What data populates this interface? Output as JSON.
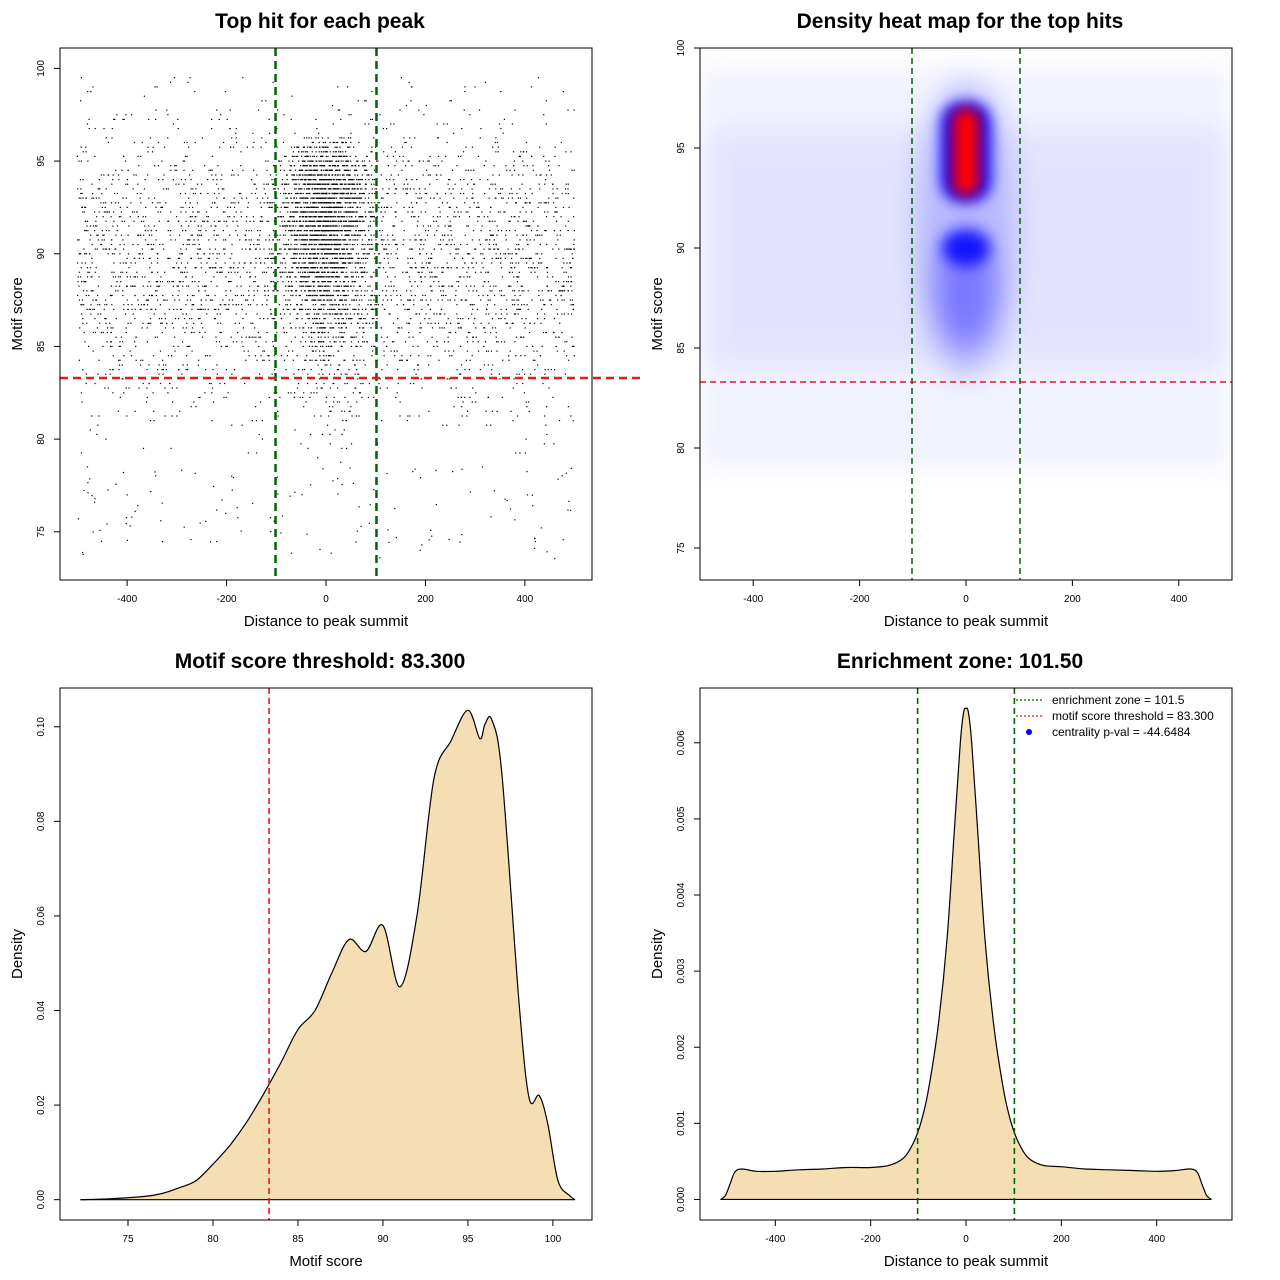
{
  "chart_data": [
    {
      "id": "scatter",
      "type": "scatter",
      "title": "Top hit for each peak",
      "xlabel": "Distance to peak summit",
      "ylabel": "Motif score",
      "xlim": [
        -535,
        535
      ],
      "ylim": [
        72.4,
        101.1
      ],
      "xticks": [
        -400,
        -200,
        0,
        200,
        400
      ],
      "yticks": [
        75,
        80,
        85,
        90,
        95,
        100
      ],
      "vlines": [
        {
          "x": -101.5,
          "color": "#006400",
          "style": "dashed"
        },
        {
          "x": 101.5,
          "color": "#006400",
          "style": "dashed"
        }
      ],
      "hlines": [
        {
          "y": 83.3,
          "color": "#e41a1c",
          "style": "dashed"
        }
      ],
      "point_color": "#000000",
      "x_range_points": [
        -500,
        500
      ],
      "grid": false
    },
    {
      "id": "heatmap",
      "type": "heatmap",
      "title": "Density heat map for the top hits",
      "xlabel": "Distance to peak summit",
      "ylabel": "Motif score",
      "xlim": [
        -500,
        500
      ],
      "ylim": [
        73.4,
        100
      ],
      "xticks": [
        -400,
        -200,
        0,
        200,
        400
      ],
      "yticks": [
        75,
        80,
        85,
        90,
        95,
        100
      ],
      "vlines": [
        {
          "x": -101.5,
          "color": "#006400",
          "style": "dashed"
        },
        {
          "x": 101.5,
          "color": "#006400",
          "style": "dashed"
        }
      ],
      "hlines": [
        {
          "y": 83.3,
          "color": "#e41a1c",
          "style": "dashed"
        }
      ],
      "colors": [
        "#ffffff",
        "#0000ff",
        "#ff0000"
      ],
      "grid": false
    },
    {
      "id": "score_density",
      "type": "area",
      "title": "Motif score threshold: 83.300",
      "xlabel": "Motif score",
      "ylabel": "Density",
      "xlim": [
        71,
        102.3
      ],
      "ylim": [
        -0.0043,
        0.1082
      ],
      "xticks": [
        75,
        80,
        85,
        90,
        95,
        100
      ],
      "yticks": [
        0.0,
        0.02,
        0.04,
        0.06,
        0.08,
        0.1
      ],
      "ytick_labels": [
        "0.00",
        "0.02",
        "0.04",
        "0.06",
        "0.08",
        "0.10"
      ],
      "x": [
        72.2,
        74,
        76,
        77,
        78,
        79,
        80,
        81,
        82,
        83,
        84,
        85,
        86,
        87,
        88,
        89,
        90,
        91,
        92,
        93,
        94,
        95,
        95.7,
        96,
        96.4,
        97,
        98,
        98.6,
        99.2,
        99.7,
        100.3,
        101,
        101.3
      ],
      "values": [
        0.0,
        0.0002,
        0.0007,
        0.0013,
        0.0025,
        0.004,
        0.0075,
        0.0115,
        0.0165,
        0.0225,
        0.029,
        0.036,
        0.04,
        0.048,
        0.055,
        0.0525,
        0.058,
        0.045,
        0.06,
        0.089,
        0.097,
        0.1035,
        0.0975,
        0.1005,
        0.1015,
        0.09,
        0.042,
        0.0215,
        0.022,
        0.016,
        0.004,
        0.0008,
        0.0
      ],
      "fill": "#f5deb3",
      "line_color": "#000000",
      "vlines": [
        {
          "x": 83.3,
          "color": "#e41a1c",
          "style": "dashed"
        }
      ],
      "grid": false
    },
    {
      "id": "distance_density",
      "type": "area",
      "title": "Enrichment zone: 101.50",
      "xlabel": "Distance to peak summit",
      "ylabel": "Density",
      "xlim": [
        -558,
        558
      ],
      "ylim": [
        -0.00027,
        0.00672
      ],
      "xticks": [
        -400,
        -200,
        0,
        200,
        400
      ],
      "yticks": [
        0.0,
        0.001,
        0.002,
        0.003,
        0.004,
        0.005,
        0.006
      ],
      "ytick_labels": [
        "0.000",
        "0.001",
        "0.002",
        "0.003",
        "0.004",
        "0.005",
        "0.006"
      ],
      "x": [
        -515,
        -505,
        -495,
        -485,
        -470,
        -440,
        -400,
        -350,
        -300,
        -250,
        -200,
        -160,
        -130,
        -110,
        -95,
        -80,
        -60,
        -40,
        -25,
        -12,
        -5,
        0,
        5,
        12,
        25,
        40,
        60,
        80,
        95,
        110,
        130,
        160,
        200,
        250,
        300,
        350,
        400,
        440,
        470,
        485,
        495,
        505,
        515
      ],
      "values": [
        0.0,
        5e-05,
        0.0002,
        0.00036,
        0.0004,
        0.00037,
        0.00037,
        0.00039,
        0.0004,
        0.00042,
        0.00042,
        0.00045,
        0.00055,
        0.00075,
        0.001,
        0.0014,
        0.0022,
        0.0034,
        0.0048,
        0.006,
        0.0064,
        0.00645,
        0.0064,
        0.006,
        0.0048,
        0.0034,
        0.0022,
        0.0014,
        0.001,
        0.00075,
        0.00055,
        0.00045,
        0.00043,
        0.0004,
        0.00039,
        0.00038,
        0.00037,
        0.00038,
        0.0004,
        0.00036,
        0.0002,
        5e-05,
        0.0
      ],
      "fill": "#f5deb3",
      "line_color": "#000000",
      "vlines": [
        {
          "x": -101.5,
          "color": "#006400",
          "style": "dashed"
        },
        {
          "x": 101.5,
          "color": "#006400",
          "style": "dashed"
        }
      ],
      "legend": {
        "position": "top-right",
        "entries": [
          {
            "label": "enrichment zone = 101.5",
            "color": "#006400",
            "kind": "line"
          },
          {
            "label": "motif score threshold = 83.300",
            "color": "#e41a1c",
            "kind": "line"
          },
          {
            "label": "centrality p-val = -44.6484",
            "color": "#0000ff",
            "kind": "point"
          }
        ]
      },
      "grid": false
    }
  ]
}
